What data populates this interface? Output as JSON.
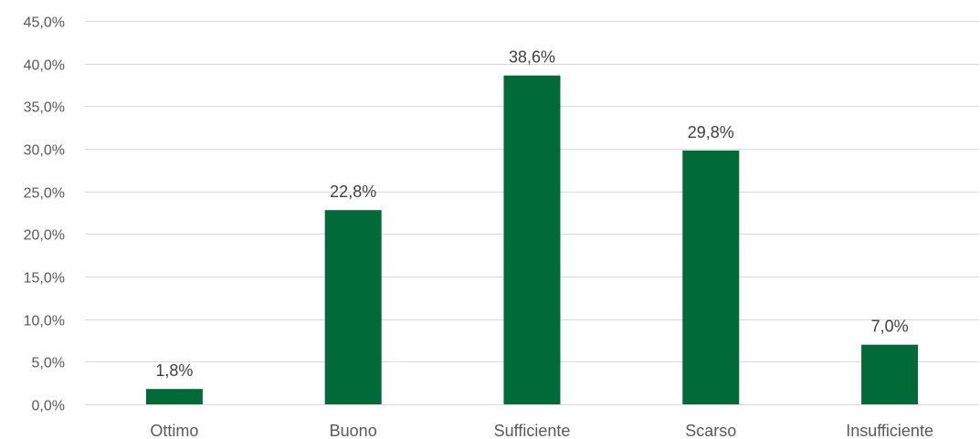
{
  "chart_data": {
    "type": "bar",
    "categories": [
      "Ottimo",
      "Buono",
      "Sufficiente",
      "Scarso",
      "Insufficiente"
    ],
    "values": [
      1.8,
      22.8,
      38.6,
      29.8,
      7.0
    ],
    "data_labels": [
      "1,8%",
      "22,8%",
      "38,6%",
      "29,8%",
      "7,0%"
    ],
    "title": "",
    "xlabel": "",
    "ylabel": "",
    "ylim": [
      0,
      45
    ],
    "y_ticks": [
      0,
      5,
      10,
      15,
      20,
      25,
      30,
      35,
      40,
      45
    ],
    "y_tick_labels": [
      "0,0%",
      "5,0%",
      "10,0%",
      "15,0%",
      "20,0%",
      "25,0%",
      "30,0%",
      "35,0%",
      "40,0%",
      "45,0%"
    ],
    "grid": true,
    "legend": "none",
    "bar_color": "#006b38"
  }
}
